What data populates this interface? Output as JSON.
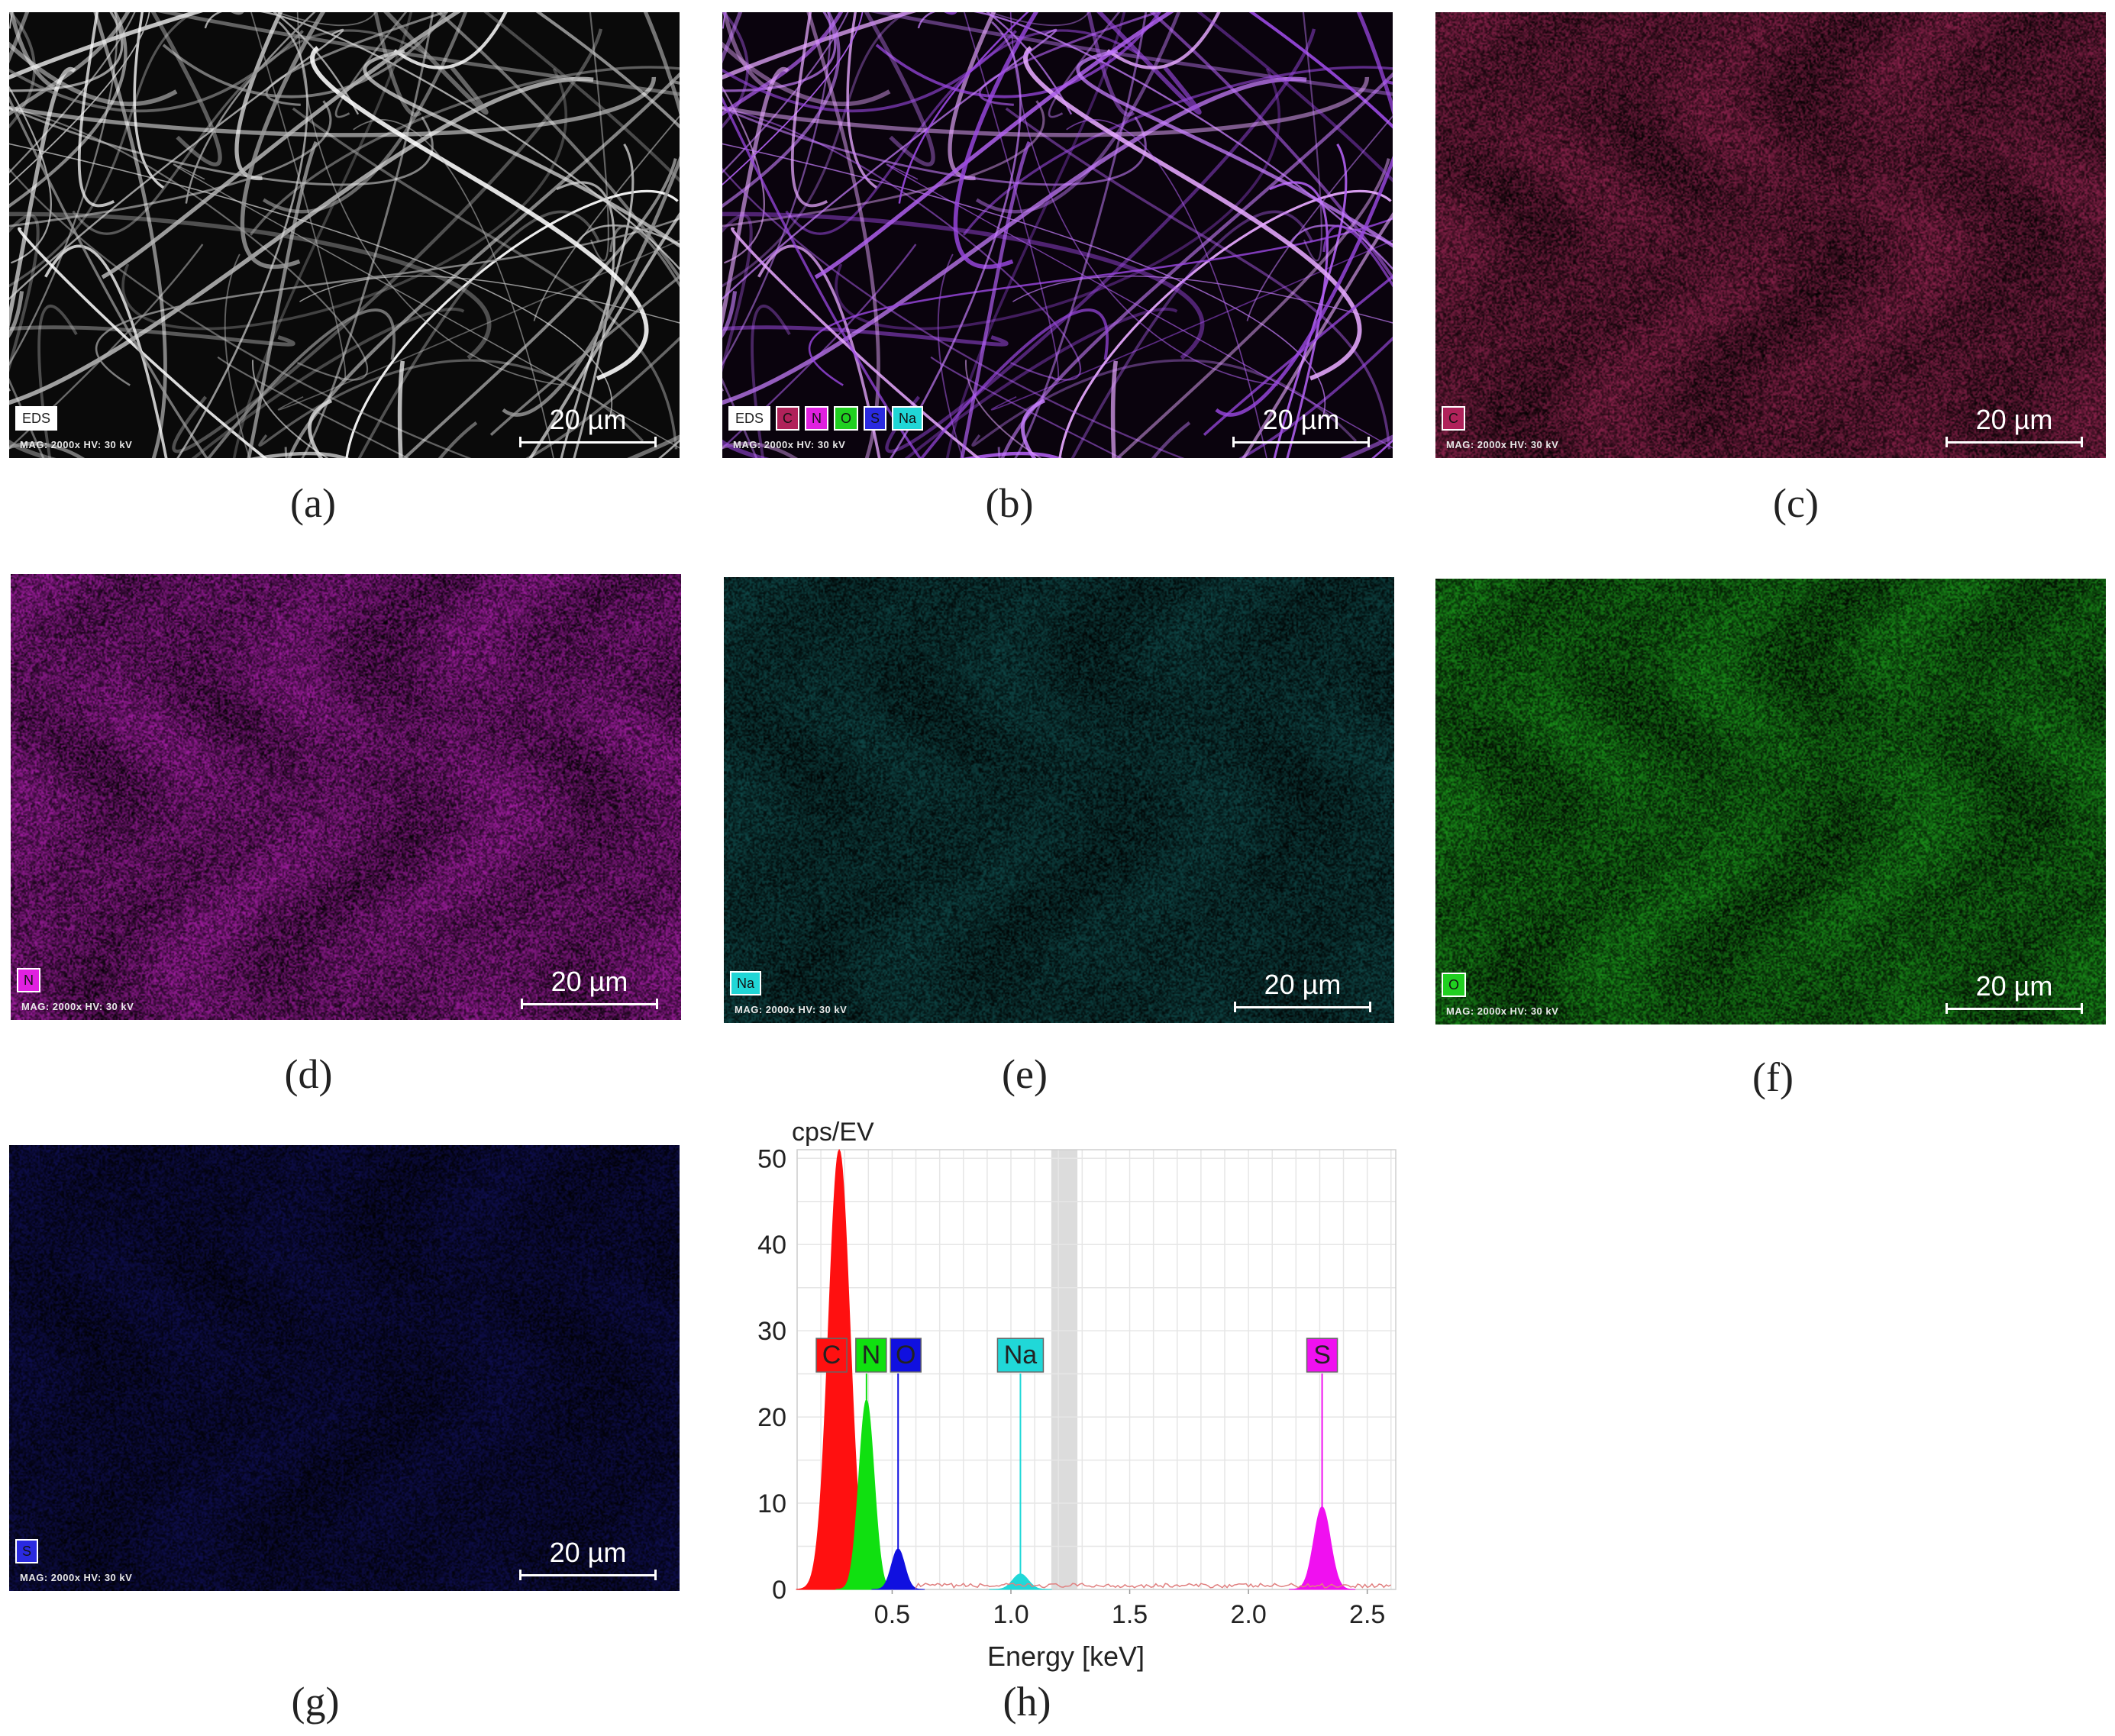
{
  "meta_text": "MAG: 2000x   HV: 30 kV",
  "scale_text": "20 µm",
  "panels": {
    "a": {
      "caption": "(a)",
      "tags": [
        {
          "text": "EDS",
          "color": "#ffffff"
        }
      ]
    },
    "b": {
      "caption": "(b)",
      "tags": [
        {
          "text": "EDS",
          "color": "#ffffff"
        },
        {
          "text": "C",
          "color": "#b0225a"
        },
        {
          "text": "N",
          "color": "#e020e0"
        },
        {
          "text": "O",
          "color": "#20d020"
        },
        {
          "text": "S",
          "color": "#2a2ae0"
        },
        {
          "text": "Na",
          "color": "#20d6d6"
        }
      ]
    },
    "c": {
      "caption": "(c)",
      "tags": [
        {
          "text": "C",
          "color": "#b0225a"
        }
      ],
      "color": "#c2306a"
    },
    "d": {
      "caption": "(d)",
      "tags": [
        {
          "text": "N",
          "color": "#e020e0"
        }
      ],
      "color": "#e02ae0"
    },
    "e": {
      "caption": "(e)",
      "tags": [
        {
          "text": "Na",
          "color": "#20d6d6"
        }
      ],
      "color": "#2ad0d0"
    },
    "f": {
      "caption": "(f)",
      "tags": [
        {
          "text": "O",
          "color": "#20d020"
        }
      ],
      "color": "#24c824"
    },
    "g": {
      "caption": "(g)",
      "tags": [
        {
          "text": "S",
          "color": "#2a2ae0"
        }
      ],
      "color": "#2a2ae8"
    },
    "h": {
      "caption": "(h)"
    }
  },
  "chart_data": {
    "type": "area",
    "ylabel": "cps/EV",
    "xlabel": "Energy [keV]",
    "xlim": [
      0.1,
      2.62
    ],
    "ylim": [
      0,
      51
    ],
    "xticks": [
      0.5,
      1.0,
      1.5,
      2.0,
      2.5
    ],
    "xtick_labels": [
      "0.5",
      "1.0",
      "1.5",
      "2.0",
      "2.5"
    ],
    "yticks": [
      0,
      10,
      20,
      30,
      40,
      50
    ],
    "grid": true,
    "shaded_band": [
      1.17,
      1.28
    ],
    "peaks": [
      {
        "element": "C",
        "energy": 0.277,
        "height": 51,
        "color": "#ff1010"
      },
      {
        "element": "N",
        "energy": 0.392,
        "height": 22,
        "color": "#10e010"
      },
      {
        "element": "O",
        "energy": 0.525,
        "height": 4.7,
        "color": "#1010e0"
      },
      {
        "element": "Na",
        "energy": 1.04,
        "height": 1.8,
        "color": "#20d8d8"
      },
      {
        "element": "S",
        "energy": 2.31,
        "height": 9.6,
        "color": "#f010f0"
      }
    ]
  }
}
